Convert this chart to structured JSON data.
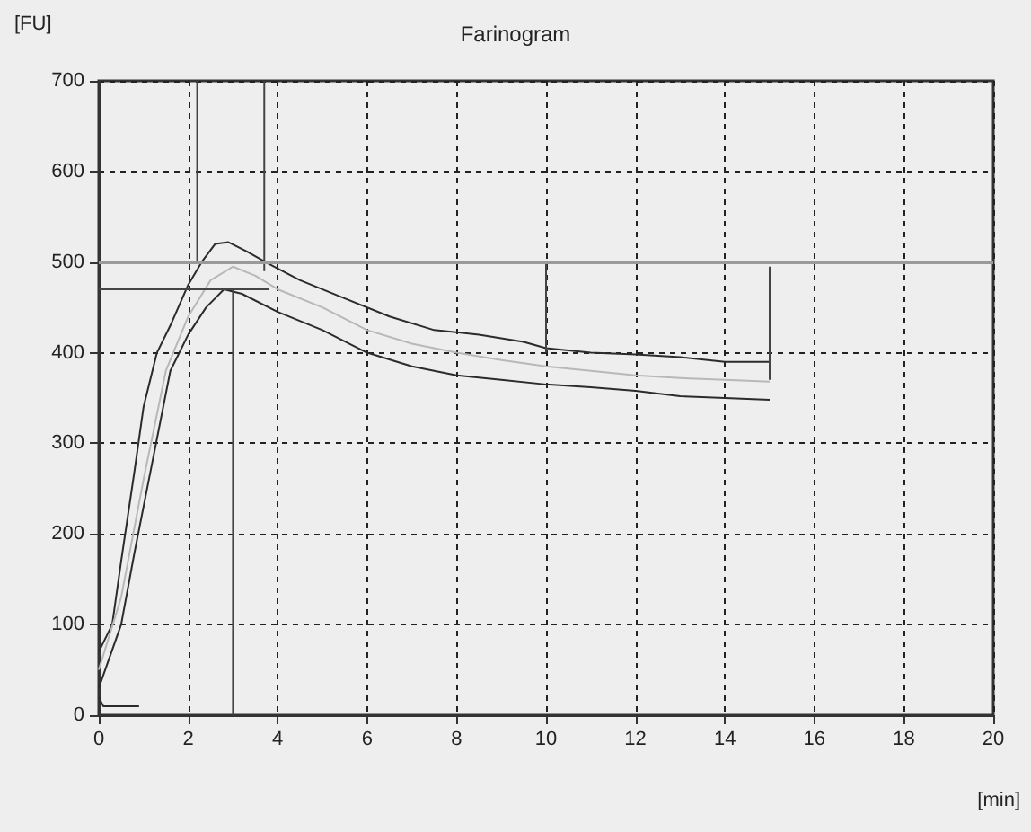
{
  "chart_data": {
    "type": "line",
    "title": "Farinogram",
    "xlabel": "[min]",
    "ylabel": "[FU]",
    "xlim": [
      0,
      20
    ],
    "xticks": [
      0,
      2,
      4,
      6,
      8,
      10,
      12,
      14,
      16,
      18,
      20
    ],
    "ylim": [
      0,
      700
    ],
    "yticks": [
      0,
      100,
      200,
      300,
      400,
      500,
      600,
      700
    ],
    "grid": true,
    "marker": "none",
    "ref_lines": [
      {
        "axis": "y",
        "value": 500,
        "color": "#9a9a9a"
      }
    ],
    "series": [
      {
        "color": "#2b2b2b",
        "x": [
          0,
          0.3,
          0.5,
          0.8,
          1.0,
          1.3,
          1.6,
          2.0,
          2.3,
          2.6,
          2.9,
          3.3,
          3.8,
          4.5,
          5.5,
          6.5,
          7.5,
          8.5,
          9.5,
          10,
          11,
          12,
          13,
          14,
          15
        ],
        "values": [
          70,
          100,
          170,
          270,
          340,
          400,
          430,
          475,
          500,
          520,
          522,
          512,
          498,
          480,
          460,
          440,
          425,
          420,
          412,
          405,
          400,
          398,
          395,
          390,
          390
        ]
      },
      {
        "color": "#b8b8b8",
        "x": [
          0,
          0.5,
          1,
          1.5,
          2,
          2.5,
          3,
          3.5,
          4,
          5,
          6,
          7,
          8,
          9,
          10,
          11,
          12,
          13,
          14,
          15
        ],
        "values": [
          50,
          130,
          260,
          380,
          440,
          480,
          495,
          485,
          470,
          450,
          425,
          410,
          400,
          392,
          385,
          380,
          375,
          372,
          370,
          368
        ]
      },
      {
        "color": "#2b2b2b",
        "x": [
          0,
          0.5,
          0.8,
          1.2,
          1.6,
          2.0,
          2.4,
          2.8,
          3.2,
          4,
          5,
          6,
          7,
          8,
          9,
          10,
          11,
          12,
          13,
          14,
          15
        ],
        "values": [
          30,
          100,
          180,
          280,
          380,
          420,
          450,
          470,
          465,
          445,
          425,
          400,
          385,
          375,
          370,
          365,
          362,
          358,
          352,
          350,
          348
        ]
      },
      {
        "color": "#2b2b2b",
        "x": [
          0,
          0.1,
          0.9
        ],
        "values": [
          20,
          10,
          10
        ]
      },
      {
        "color": "#444444",
        "x": [
          0,
          3.8
        ],
        "values": [
          470,
          470
        ]
      },
      {
        "color": "#444444",
        "x": [
          2.2,
          2.2
        ],
        "values": [
          500,
          700
        ]
      },
      {
        "color": "#444444",
        "x": [
          3.7,
          3.7
        ],
        "values": [
          490,
          700
        ]
      },
      {
        "color": "#444444",
        "x": [
          3.0,
          3.0
        ],
        "values": [
          0,
          470
        ]
      },
      {
        "color": "#444444",
        "x": [
          10,
          10
        ],
        "values": [
          400,
          500
        ]
      },
      {
        "color": "#444444",
        "x": [
          15,
          15
        ],
        "values": [
          370,
          495
        ]
      }
    ]
  }
}
